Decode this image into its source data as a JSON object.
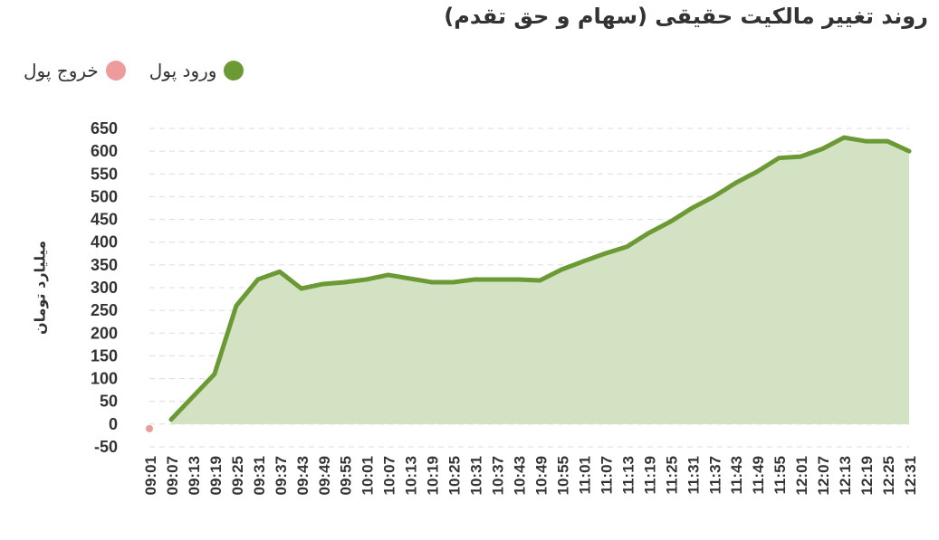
{
  "title": "روند تغییر مالکیت حقیقی (سهام و حق تقدم)",
  "legend": [
    {
      "label": "خروج پول",
      "color": "#ee9b9b"
    },
    {
      "label": "ورود پول",
      "color": "#6b9a35"
    }
  ],
  "chart_data": {
    "type": "area",
    "ylabel": "میلیارد تومان",
    "ylim": [
      -50,
      650
    ],
    "yticks": [
      -50,
      0,
      50,
      100,
      150,
      200,
      250,
      300,
      350,
      400,
      450,
      500,
      550,
      600,
      650
    ],
    "grid": true,
    "legend_position": "top-left",
    "categories": [
      "09:01",
      "09:07",
      "09:13",
      "09:19",
      "09:25",
      "09:31",
      "09:37",
      "09:43",
      "09:49",
      "09:55",
      "10:01",
      "10:07",
      "10:13",
      "10:19",
      "10:25",
      "10:31",
      "10:37",
      "10:43",
      "10:49",
      "10:55",
      "11:01",
      "11:07",
      "11:13",
      "11:19",
      "11:25",
      "11:31",
      "11:37",
      "11:43",
      "11:49",
      "11:55",
      "12:01",
      "12:07",
      "12:13",
      "12:19",
      "12:25",
      "12:31"
    ],
    "series": [
      {
        "name": "ورود پول",
        "color": "#6b9a35",
        "fill": "#d2e2c3",
        "values": [
          null,
          10,
          60,
          110,
          260,
          318,
          335,
          298,
          308,
          312,
          318,
          328,
          320,
          312,
          312,
          318,
          318,
          318,
          316,
          340,
          358,
          375,
          390,
          420,
          445,
          475,
          500,
          530,
          555,
          585,
          588,
          605,
          630,
          622,
          622,
          600
        ]
      },
      {
        "name": "خروج پول",
        "color": "#ee9b9b",
        "values": [
          -10,
          null,
          null,
          null,
          null,
          null,
          null,
          null,
          null,
          null,
          null,
          null,
          null,
          null,
          null,
          null,
          null,
          null,
          null,
          null,
          null,
          null,
          null,
          null,
          null,
          null,
          null,
          null,
          null,
          null,
          null,
          null,
          null,
          null,
          null,
          null
        ]
      }
    ]
  }
}
